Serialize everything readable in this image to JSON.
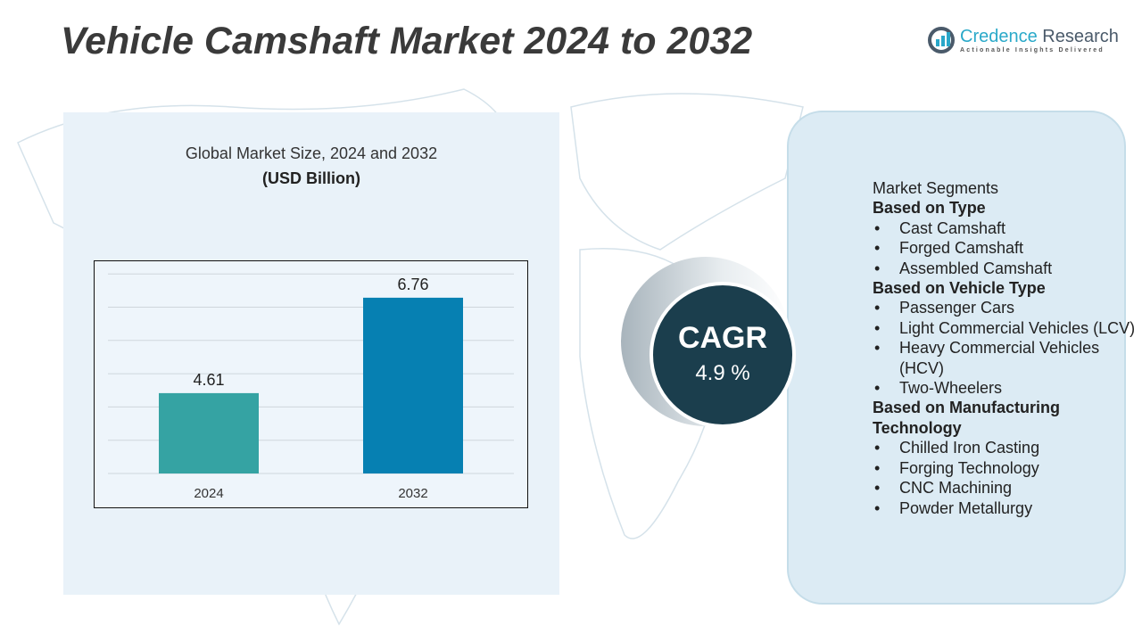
{
  "title": "Vehicle Camshaft Market 2024 to 2032",
  "logo": {
    "name_part1": "Credence",
    "name_part2": " Research",
    "tagline": "Actionable Insights Delivered"
  },
  "chart_header": {
    "subtitle": "Global Market Size, 2024 and 2032",
    "unit": "(USD Billion)"
  },
  "chart_data": {
    "type": "bar",
    "categories": [
      "2024",
      "2032"
    ],
    "values": [
      4.61,
      6.76
    ],
    "data_labels": [
      "4.61",
      "6.76"
    ],
    "colors": [
      "#35a3a3",
      "#0680b2"
    ],
    "title": "Global Market Size, 2024 and 2032",
    "ylabel": "(USD Billion)",
    "xlabel": "",
    "ylim": [
      2.8,
      7.3
    ],
    "grid": true
  },
  "cagr": {
    "label": "CAGR",
    "value": "4.9 %"
  },
  "segments": {
    "heading": "Market Segments",
    "groups": [
      {
        "title": "Based on Type",
        "items": [
          "Cast Camshaft",
          "Forged Camshaft",
          "Assembled Camshaft"
        ]
      },
      {
        "title": "Based on Vehicle Type",
        "items": [
          "Passenger Cars",
          "Light Commercial Vehicles (LCV)",
          "Heavy Commercial Vehicles (HCV)",
          "Two-Wheelers"
        ]
      },
      {
        "title": "Based on Manufacturing Technology",
        "items": [
          "Chilled Iron Casting",
          "Forging Technology",
          "CNC Machining",
          "Powder Metallurgy"
        ]
      }
    ]
  }
}
